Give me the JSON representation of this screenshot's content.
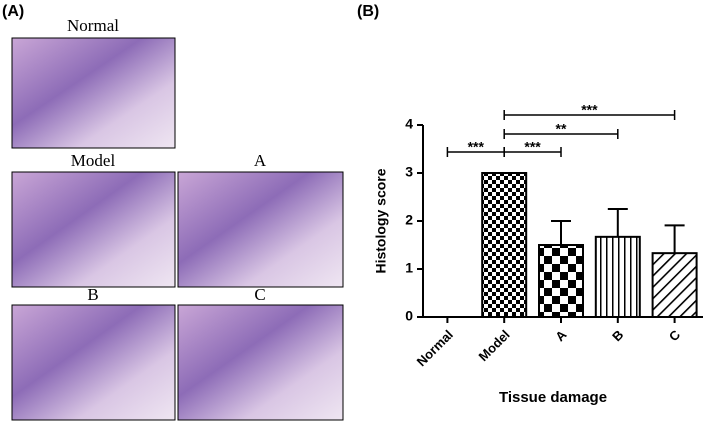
{
  "panel_a": {
    "label": "(A)",
    "images": [
      {
        "label": "Normal"
      },
      {
        "label": "Model"
      },
      {
        "label": "A"
      },
      {
        "label": "B"
      },
      {
        "label": "C"
      }
    ]
  },
  "chart_data": {
    "type": "bar",
    "panel_label": "(B)",
    "ylabel": "Histology score",
    "xlabel": "Tissue damage",
    "categories": [
      "Normal",
      "Model",
      "A",
      "B",
      "C"
    ],
    "values": [
      0,
      3,
      1.5,
      1.67,
      1.33
    ],
    "errors": [
      null,
      null,
      0.5,
      0.58,
      0.58
    ],
    "color": "#000000",
    "ylim": [
      0,
      4
    ],
    "yticks": [
      0,
      1,
      2,
      3,
      4
    ],
    "comparisons": [
      {
        "label": "***",
        "groups": [
          "Normal",
          "Model"
        ]
      },
      {
        "label": "***",
        "groups": [
          "Model",
          "A"
        ]
      },
      {
        "label": "**",
        "groups": [
          "Model",
          "B"
        ]
      },
      {
        "label": "***",
        "groups": [
          "Model",
          "C"
        ]
      }
    ]
  }
}
